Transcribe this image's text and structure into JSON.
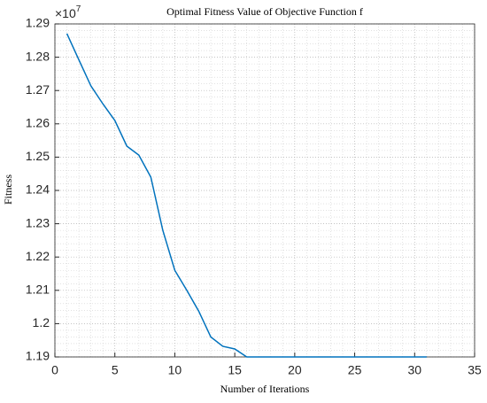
{
  "chart_data": {
    "type": "line",
    "title": "Optimal Fitness Value of Objective Function f",
    "xlabel": "Number of Iterations",
    "ylabel": "Fitness",
    "multiplier": {
      "base": "×10",
      "exponent": "7"
    },
    "x": [
      1,
      2,
      3,
      4,
      5,
      6,
      7,
      8,
      9,
      10,
      11,
      12,
      13,
      14,
      15,
      16,
      17,
      18,
      19,
      20,
      21,
      22,
      23,
      24,
      25,
      26,
      27,
      28,
      29,
      30,
      31
    ],
    "series": [
      {
        "color": "#0072bd",
        "values": [
          1.2871,
          1.2792,
          1.2714,
          1.266,
          1.261,
          1.2533,
          1.2506,
          1.244,
          1.228,
          1.216,
          1.21,
          1.2037,
          1.196,
          1.1932,
          1.1924,
          1.19,
          1.19,
          1.19,
          1.19,
          1.19,
          1.19,
          1.19,
          1.19,
          1.19,
          1.19,
          1.19,
          1.19,
          1.19,
          1.19,
          1.19,
          1.19
        ]
      }
    ],
    "xlim": [
      0,
      35
    ],
    "xticks": [
      0,
      5,
      10,
      15,
      20,
      25,
      30,
      35
    ],
    "ylim": [
      1.19,
      1.29
    ],
    "yticks": [
      1.19,
      1.2,
      1.21,
      1.22,
      1.23,
      1.24,
      1.25,
      1.26,
      1.27,
      1.28,
      1.29
    ],
    "grid": true,
    "minor_grid": true
  }
}
